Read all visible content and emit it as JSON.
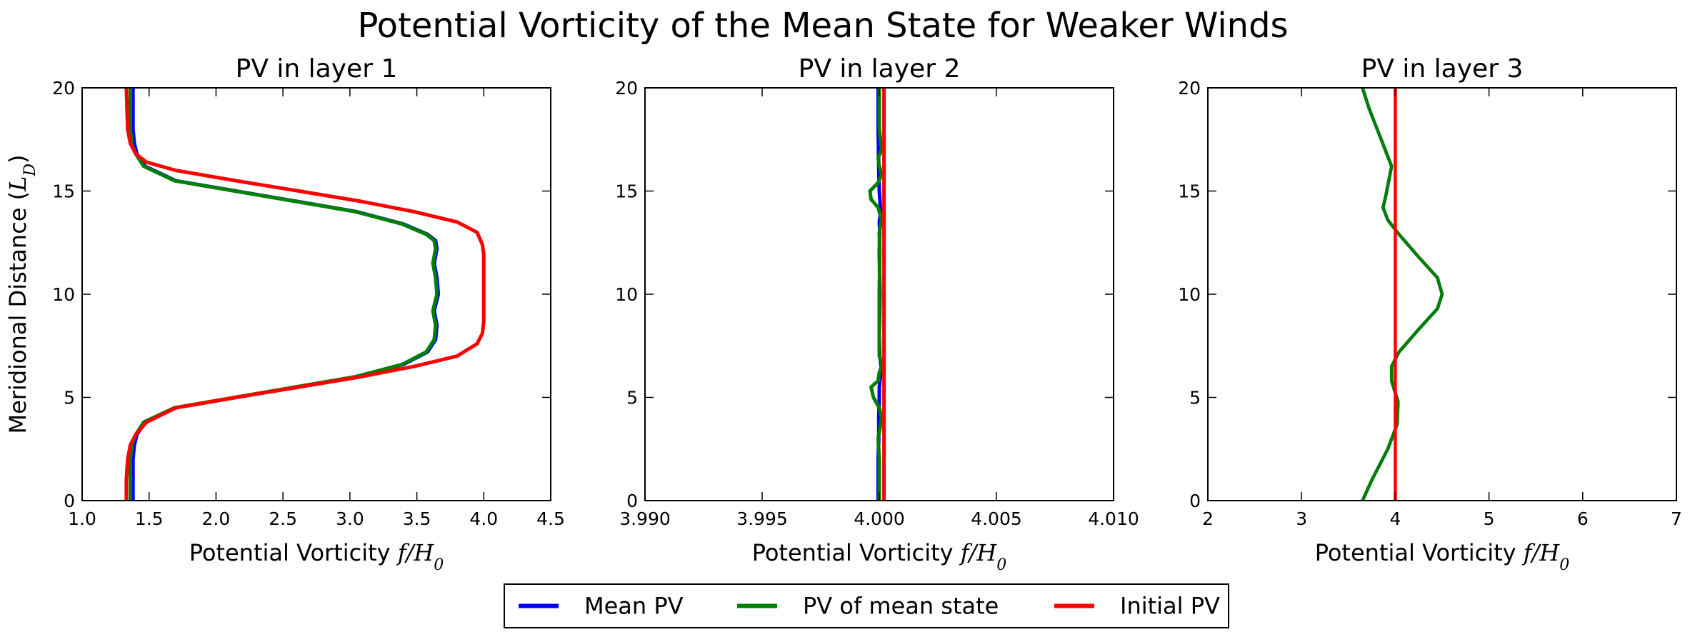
{
  "figure": {
    "title": "Potential Vorticity of the Mean State for Weaker Winds"
  },
  "legend": {
    "position": "bottom-center",
    "entries": [
      {
        "label": "Mean PV",
        "color": "#0000ff"
      },
      {
        "label": "PV of mean state",
        "color": "#008000"
      },
      {
        "label": "Initial PV",
        "color": "#ff0000"
      }
    ]
  },
  "chart_data": [
    {
      "type": "line",
      "title": "PV in layer 1",
      "xlabel": "Potential Vorticity f/H0",
      "ylabel": "Meridional Distance (L_D)",
      "xlim": [
        1.0,
        4.5
      ],
      "ylim": [
        0,
        20
      ],
      "xticks": [
        "1.0",
        "1.5",
        "2.0",
        "2.5",
        "3.0",
        "3.5",
        "4.0",
        "4.5"
      ],
      "yticks": [
        "0",
        "5",
        "10",
        "15",
        "20"
      ],
      "grid": false,
      "series": [
        {
          "name": "Mean PV",
          "color": "#0000ff",
          "x": [
            1.38,
            1.38,
            1.38,
            1.39,
            1.41,
            1.47,
            1.7,
            2.15,
            2.6,
            3.05,
            3.4,
            3.58,
            3.64,
            3.65,
            3.63,
            3.66,
            3.65,
            3.63,
            3.65,
            3.64,
            3.58,
            3.4,
            3.05,
            2.6,
            2.15,
            1.7,
            1.47,
            1.41,
            1.39,
            1.38,
            1.38
          ],
          "y": [
            0,
            1,
            2,
            2.7,
            3.2,
            3.8,
            4.5,
            5.0,
            5.5,
            6.0,
            6.6,
            7.2,
            7.8,
            8.5,
            9.2,
            10,
            10.8,
            11.5,
            12.2,
            12.6,
            12.9,
            13.4,
            14.0,
            14.5,
            15.0,
            15.5,
            16.2,
            16.8,
            17.3,
            18,
            20
          ]
        },
        {
          "name": "PV of mean state",
          "color": "#008000",
          "x": [
            1.36,
            1.36,
            1.36,
            1.37,
            1.4,
            1.46,
            1.69,
            2.14,
            2.59,
            3.04,
            3.39,
            3.57,
            3.63,
            3.64,
            3.62,
            3.65,
            3.64,
            3.62,
            3.64,
            3.63,
            3.57,
            3.39,
            3.04,
            2.59,
            2.14,
            1.69,
            1.46,
            1.4,
            1.37,
            1.36,
            1.36
          ],
          "y": [
            0,
            1,
            2,
            2.7,
            3.2,
            3.8,
            4.5,
            5.0,
            5.5,
            6.0,
            6.6,
            7.2,
            7.8,
            8.5,
            9.2,
            10,
            10.8,
            11.5,
            12.2,
            12.6,
            12.9,
            13.4,
            14.0,
            14.5,
            15.0,
            15.5,
            16.2,
            16.8,
            17.3,
            18,
            20
          ]
        },
        {
          "name": "Initial PV",
          "color": "#ff0000",
          "x": [
            1.33,
            1.33,
            1.34,
            1.36,
            1.4,
            1.48,
            1.7,
            2.15,
            2.62,
            3.08,
            3.48,
            3.8,
            3.95,
            3.99,
            4.0,
            4.0,
            4.0,
            4.0,
            3.99,
            3.95,
            3.8,
            3.48,
            3.08,
            2.62,
            2.15,
            1.7,
            1.48,
            1.4,
            1.36,
            1.34,
            1.33
          ],
          "y": [
            0,
            1,
            2,
            2.7,
            3.2,
            3.8,
            4.5,
            5.0,
            5.5,
            6.0,
            6.5,
            7.0,
            7.6,
            8.1,
            8.7,
            10,
            11.3,
            11.9,
            12.4,
            13.0,
            13.5,
            14.0,
            14.5,
            15.0,
            15.5,
            16.0,
            16.4,
            16.8,
            17.3,
            18,
            20
          ]
        }
      ]
    },
    {
      "type": "line",
      "title": "PV in layer 2",
      "xlabel": "Potential Vorticity f/H0",
      "ylabel": "",
      "xlim": [
        3.99,
        4.01
      ],
      "ylim": [
        0,
        20
      ],
      "xticks": [
        "3.990",
        "3.995",
        "4.000",
        "4.005",
        "4.010"
      ],
      "yticks": [
        "0",
        "5",
        "10",
        "15",
        "20"
      ],
      "grid": false,
      "series": [
        {
          "name": "Mean PV",
          "color": "#0000ff",
          "x": [
            3.99995,
            3.99995,
            3.99998,
            3.99998,
            4.0,
            4.0,
            4.00005,
            4.00008,
            4.00002,
            4.0,
            4.00003,
            4.0,
            4.00002,
            4.0,
            4.00006,
            4.0,
            3.99998,
            3.99995,
            3.99995
          ],
          "y": [
            0,
            2,
            3,
            4,
            5,
            5.5,
            6,
            6.5,
            7,
            8,
            10,
            12,
            13,
            13.5,
            14,
            15,
            16,
            18,
            20
          ]
        },
        {
          "name": "PV of mean state",
          "color": "#008000",
          "x": [
            4.0,
            4.0,
            3.99995,
            4.0001,
            4.0,
            3.99975,
            3.99965,
            3.99995,
            4.0,
            4.00012,
            4.0,
            4.0,
            4.0,
            4.00002,
            4.0,
            4.0001,
            3.99995,
            3.99965,
            3.9996,
            3.99995,
            4.0001,
            4.0,
            3.99995,
            4.0001,
            4.0,
            4.0
          ],
          "y": [
            0,
            2,
            3,
            4,
            4.5,
            5,
            5.5,
            5.8,
            6.2,
            6.6,
            7,
            8,
            10,
            12,
            13,
            13.6,
            14.2,
            14.6,
            15,
            15.4,
            15.8,
            16.2,
            16.6,
            17,
            18,
            20
          ]
        },
        {
          "name": "Initial PV",
          "color": "#ff0000",
          "x": [
            4.0002,
            4.0002
          ],
          "y": [
            0,
            20
          ]
        }
      ]
    },
    {
      "type": "line",
      "title": "PV in layer 3",
      "xlabel": "Potential Vorticity f/H0",
      "ylabel": "",
      "xlim": [
        2,
        7
      ],
      "ylim": [
        0,
        20
      ],
      "xticks": [
        "2",
        "3",
        "4",
        "5",
        "6",
        "7"
      ],
      "yticks": [
        "0",
        "5",
        "10",
        "15",
        "20"
      ],
      "grid": false,
      "series": [
        {
          "name": "Mean PV",
          "color": "#0000ff",
          "x": [
            3.65,
            3.75,
            3.92,
            4.02,
            4.03,
            3.96,
            3.96,
            4.04,
            4.25,
            4.45,
            4.5,
            4.45,
            4.25,
            4.04,
            3.92,
            3.87,
            3.9,
            3.96,
            3.85,
            3.72,
            3.65
          ],
          "y": [
            0,
            1,
            2.5,
            3.7,
            4.8,
            5.8,
            6.5,
            7.2,
            8.3,
            9.3,
            10,
            10.8,
            11.8,
            12.9,
            13.6,
            14.2,
            14.8,
            16.2,
            17.5,
            19,
            20
          ]
        },
        {
          "name": "PV of mean state",
          "color": "#008000",
          "x": [
            3.65,
            3.75,
            3.92,
            4.02,
            4.03,
            3.96,
            3.96,
            4.04,
            4.25,
            4.45,
            4.5,
            4.45,
            4.25,
            4.04,
            3.92,
            3.87,
            3.9,
            3.96,
            3.85,
            3.72,
            3.65
          ],
          "y": [
            0,
            1,
            2.5,
            3.7,
            4.8,
            5.8,
            6.5,
            7.2,
            8.3,
            9.3,
            10,
            10.8,
            11.8,
            12.9,
            13.6,
            14.2,
            14.8,
            16.2,
            17.5,
            19,
            20
          ]
        },
        {
          "name": "Initial PV",
          "color": "#ff0000",
          "x": [
            4.0,
            4.0
          ],
          "y": [
            0,
            20
          ]
        }
      ]
    }
  ]
}
